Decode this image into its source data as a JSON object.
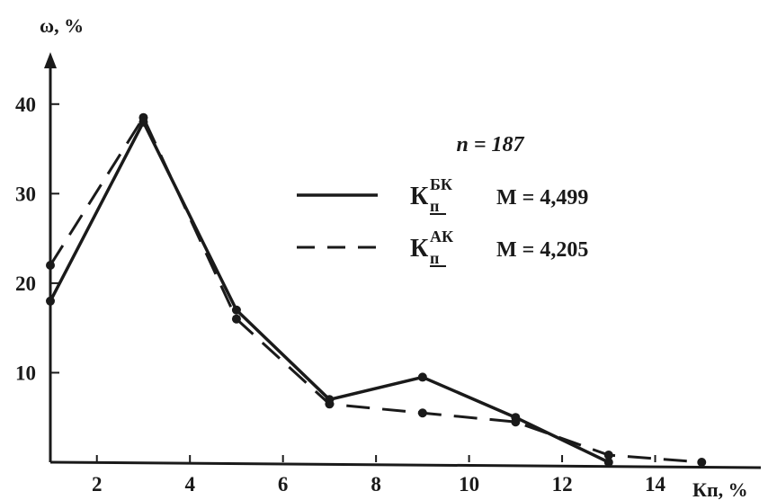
{
  "chart_data": {
    "type": "line",
    "ylabel": "ω, %",
    "xlabel": "Кп, %",
    "xlim": [
      1,
      16
    ],
    "ylim": [
      0,
      45
    ],
    "x_ticks": [
      2,
      4,
      6,
      8,
      10,
      12,
      14
    ],
    "y_ticks": [
      10,
      20,
      30,
      40
    ],
    "grid": false,
    "annotation": "n = 187",
    "legend_position": "top-right",
    "series": [
      {
        "name": "Кп БК",
        "symbol": "К",
        "subscript": "п",
        "superscript": "БК",
        "mean_label": "M = 4,499",
        "style": "solid",
        "color": "#1a1a1a",
        "x": [
          1,
          3,
          5,
          7,
          9,
          11,
          13
        ],
        "y": [
          18,
          38,
          17,
          7,
          9.5,
          5,
          0
        ]
      },
      {
        "name": "Кп АК",
        "symbol": "К",
        "subscript": "п",
        "superscript": "АК",
        "mean_label": "M = 4,205",
        "style": "dashed",
        "color": "#1a1a1a",
        "x": [
          1,
          3,
          5,
          7,
          9,
          11,
          13,
          15
        ],
        "y": [
          22,
          38.5,
          16,
          6.5,
          5.5,
          4.5,
          0.8,
          0
        ]
      }
    ]
  }
}
